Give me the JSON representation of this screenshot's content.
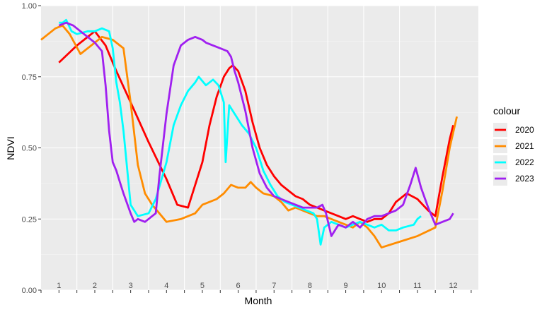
{
  "chart_data": {
    "type": "line",
    "xlabel": "Month",
    "ylabel": "NDVI",
    "ylim": [
      0,
      1
    ],
    "yticks": [
      "0.00",
      "0.25",
      "0.50",
      "0.75",
      "1.00"
    ],
    "month_labels": [
      "1",
      "2",
      "3",
      "4",
      "5",
      "6",
      "7",
      "8",
      "9",
      "10",
      "11",
      "12"
    ],
    "xlim": [
      0.5,
      12.7
    ],
    "grid": true,
    "legend": {
      "title": "colour",
      "placement": "right"
    },
    "colors": {
      "2020": "#ff0000",
      "2021": "#ff8c00",
      "2022": "#00ffff",
      "2023": "#a020f0"
    },
    "series": [
      {
        "name": "2020",
        "points": [
          [
            1.0,
            0.8
          ],
          [
            1.5,
            0.86
          ],
          [
            2.0,
            0.91
          ],
          [
            2.3,
            0.86
          ],
          [
            2.6,
            0.77
          ],
          [
            3.0,
            0.66
          ],
          [
            3.5,
            0.52
          ],
          [
            4.0,
            0.39
          ],
          [
            4.3,
            0.3
          ],
          [
            4.6,
            0.29
          ],
          [
            5.0,
            0.45
          ],
          [
            5.2,
            0.58
          ],
          [
            5.4,
            0.68
          ],
          [
            5.6,
            0.75
          ],
          [
            5.75,
            0.78
          ],
          [
            5.85,
            0.79
          ],
          [
            6.0,
            0.77
          ],
          [
            6.2,
            0.7
          ],
          [
            6.4,
            0.59
          ],
          [
            6.6,
            0.5
          ],
          [
            6.8,
            0.44
          ],
          [
            7.0,
            0.4
          ],
          [
            7.2,
            0.37
          ],
          [
            7.4,
            0.35
          ],
          [
            7.6,
            0.33
          ],
          [
            7.8,
            0.32
          ],
          [
            8.0,
            0.3
          ],
          [
            8.2,
            0.29
          ],
          [
            8.4,
            0.28
          ],
          [
            8.6,
            0.27
          ],
          [
            8.8,
            0.26
          ],
          [
            9.0,
            0.25
          ],
          [
            9.2,
            0.26
          ],
          [
            9.4,
            0.25
          ],
          [
            9.6,
            0.24
          ],
          [
            9.8,
            0.25
          ],
          [
            10.0,
            0.25
          ],
          [
            10.2,
            0.27
          ],
          [
            10.4,
            0.31
          ],
          [
            10.7,
            0.34
          ],
          [
            11.0,
            0.32
          ],
          [
            11.3,
            0.28
          ],
          [
            11.5,
            0.26
          ],
          [
            11.7,
            0.4
          ],
          [
            11.9,
            0.53
          ],
          [
            12.0,
            0.58
          ]
        ]
      },
      {
        "name": "2021",
        "points": [
          [
            0.5,
            0.88
          ],
          [
            0.7,
            0.9
          ],
          [
            0.9,
            0.92
          ],
          [
            1.1,
            0.93
          ],
          [
            1.3,
            0.9
          ],
          [
            1.6,
            0.83
          ],
          [
            1.8,
            0.85
          ],
          [
            2.0,
            0.87
          ],
          [
            2.2,
            0.89
          ],
          [
            2.5,
            0.88
          ],
          [
            2.7,
            0.86
          ],
          [
            2.8,
            0.85
          ],
          [
            3.0,
            0.66
          ],
          [
            3.2,
            0.44
          ],
          [
            3.4,
            0.34
          ],
          [
            3.6,
            0.3
          ],
          [
            3.8,
            0.27
          ],
          [
            4.0,
            0.24
          ],
          [
            4.4,
            0.25
          ],
          [
            4.8,
            0.27
          ],
          [
            5.0,
            0.3
          ],
          [
            5.2,
            0.31
          ],
          [
            5.4,
            0.32
          ],
          [
            5.6,
            0.34
          ],
          [
            5.8,
            0.37
          ],
          [
            6.0,
            0.36
          ],
          [
            6.2,
            0.36
          ],
          [
            6.35,
            0.38
          ],
          [
            6.5,
            0.36
          ],
          [
            6.7,
            0.34
          ],
          [
            7.0,
            0.33
          ],
          [
            7.2,
            0.31
          ],
          [
            7.4,
            0.28
          ],
          [
            7.6,
            0.29
          ],
          [
            7.8,
            0.28
          ],
          [
            8.0,
            0.27
          ],
          [
            8.2,
            0.26
          ],
          [
            8.4,
            0.26
          ],
          [
            8.6,
            0.25
          ],
          [
            8.8,
            0.24
          ],
          [
            9.0,
            0.23
          ],
          [
            9.2,
            0.22
          ],
          [
            9.4,
            0.24
          ],
          [
            9.6,
            0.22
          ],
          [
            9.8,
            0.19
          ],
          [
            10.0,
            0.15
          ],
          [
            10.5,
            0.17
          ],
          [
            11.0,
            0.19
          ],
          [
            11.5,
            0.22
          ],
          [
            11.7,
            0.35
          ],
          [
            11.9,
            0.5
          ],
          [
            12.1,
            0.61
          ]
        ]
      },
      {
        "name": "2022",
        "points": [
          [
            1.0,
            0.94
          ],
          [
            1.1,
            0.94
          ],
          [
            1.2,
            0.95
          ],
          [
            1.35,
            0.91
          ],
          [
            1.5,
            0.9
          ],
          [
            1.8,
            0.91
          ],
          [
            2.0,
            0.91
          ],
          [
            2.2,
            0.92
          ],
          [
            2.4,
            0.91
          ],
          [
            2.5,
            0.85
          ],
          [
            2.6,
            0.73
          ],
          [
            2.7,
            0.66
          ],
          [
            2.8,
            0.56
          ],
          [
            3.0,
            0.3
          ],
          [
            3.2,
            0.26
          ],
          [
            3.5,
            0.27
          ],
          [
            3.7,
            0.32
          ],
          [
            4.0,
            0.45
          ],
          [
            4.2,
            0.58
          ],
          [
            4.4,
            0.65
          ],
          [
            4.6,
            0.7
          ],
          [
            4.8,
            0.73
          ],
          [
            4.9,
            0.75
          ],
          [
            5.1,
            0.72
          ],
          [
            5.3,
            0.74
          ],
          [
            5.45,
            0.72
          ],
          [
            5.6,
            0.66
          ],
          [
            5.65,
            0.45
          ],
          [
            5.75,
            0.65
          ],
          [
            5.9,
            0.62
          ],
          [
            6.1,
            0.58
          ],
          [
            6.3,
            0.55
          ],
          [
            6.5,
            0.5
          ],
          [
            6.7,
            0.42
          ],
          [
            6.9,
            0.37
          ],
          [
            7.1,
            0.33
          ],
          [
            7.3,
            0.31
          ],
          [
            7.5,
            0.3
          ],
          [
            7.7,
            0.29
          ],
          [
            7.9,
            0.28
          ],
          [
            8.1,
            0.27
          ],
          [
            8.2,
            0.25
          ],
          [
            8.3,
            0.16
          ],
          [
            8.4,
            0.22
          ],
          [
            8.6,
            0.24
          ],
          [
            8.8,
            0.23
          ],
          [
            9.0,
            0.22
          ],
          [
            9.2,
            0.23
          ],
          [
            9.4,
            0.24
          ],
          [
            9.6,
            0.23
          ],
          [
            9.8,
            0.22
          ],
          [
            10.0,
            0.23
          ],
          [
            10.2,
            0.21
          ],
          [
            10.4,
            0.21
          ],
          [
            10.6,
            0.22
          ],
          [
            10.9,
            0.23
          ],
          [
            11.0,
            0.25
          ],
          [
            11.1,
            0.26
          ]
        ]
      },
      {
        "name": "2023",
        "points": [
          [
            1.0,
            0.93
          ],
          [
            1.2,
            0.94
          ],
          [
            1.4,
            0.93
          ],
          [
            1.6,
            0.91
          ],
          [
            1.8,
            0.89
          ],
          [
            2.0,
            0.87
          ],
          [
            2.2,
            0.84
          ],
          [
            2.3,
            0.72
          ],
          [
            2.4,
            0.56
          ],
          [
            2.5,
            0.45
          ],
          [
            2.6,
            0.42
          ],
          [
            2.7,
            0.38
          ],
          [
            2.8,
            0.34
          ],
          [
            3.0,
            0.27
          ],
          [
            3.1,
            0.24
          ],
          [
            3.2,
            0.25
          ],
          [
            3.4,
            0.24
          ],
          [
            3.6,
            0.26
          ],
          [
            3.7,
            0.27
          ],
          [
            3.8,
            0.4
          ],
          [
            4.0,
            0.62
          ],
          [
            4.2,
            0.79
          ],
          [
            4.4,
            0.86
          ],
          [
            4.6,
            0.88
          ],
          [
            4.8,
            0.89
          ],
          [
            5.0,
            0.88
          ],
          [
            5.1,
            0.87
          ],
          [
            5.3,
            0.86
          ],
          [
            5.5,
            0.85
          ],
          [
            5.7,
            0.84
          ],
          [
            5.8,
            0.82
          ],
          [
            5.9,
            0.77
          ],
          [
            6.0,
            0.73
          ],
          [
            6.2,
            0.63
          ],
          [
            6.4,
            0.5
          ],
          [
            6.6,
            0.41
          ],
          [
            6.8,
            0.36
          ],
          [
            7.0,
            0.33
          ],
          [
            7.2,
            0.32
          ],
          [
            7.4,
            0.31
          ],
          [
            7.6,
            0.3
          ],
          [
            7.8,
            0.29
          ],
          [
            8.0,
            0.29
          ],
          [
            8.2,
            0.29
          ],
          [
            8.35,
            0.3
          ],
          [
            8.45,
            0.27
          ],
          [
            8.6,
            0.19
          ],
          [
            8.8,
            0.23
          ],
          [
            9.0,
            0.22
          ],
          [
            9.2,
            0.24
          ],
          [
            9.4,
            0.22
          ],
          [
            9.6,
            0.25
          ],
          [
            9.8,
            0.26
          ],
          [
            10.0,
            0.26
          ],
          [
            10.2,
            0.27
          ],
          [
            10.4,
            0.28
          ],
          [
            10.6,
            0.3
          ],
          [
            10.8,
            0.37
          ],
          [
            10.95,
            0.43
          ],
          [
            11.1,
            0.36
          ],
          [
            11.3,
            0.29
          ],
          [
            11.5,
            0.23
          ],
          [
            11.7,
            0.24
          ],
          [
            11.9,
            0.25
          ],
          [
            12.0,
            0.27
          ]
        ]
      }
    ]
  }
}
